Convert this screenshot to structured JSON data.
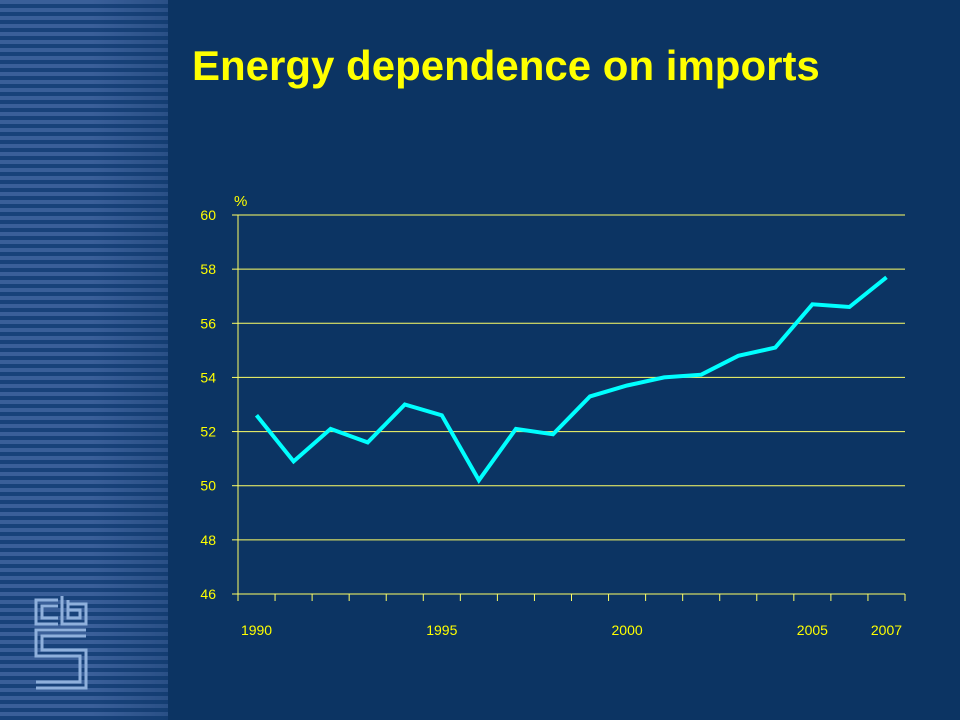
{
  "title": "Energy dependence on imports",
  "colors": {
    "background": "#0c3463",
    "title": "#ffff00",
    "axis_text": "#ffff00",
    "grid": "#ffff66",
    "line": "#00ffff",
    "logo": "#8fb0dc"
  },
  "logo_icon": "cbs-logo-icon",
  "chart_data": {
    "type": "line",
    "title": "Energy dependence on imports",
    "ylabel": "%",
    "xlabel": "",
    "ylim": [
      46,
      60
    ],
    "xlim": [
      1989.5,
      2007.5
    ],
    "yticks": [
      46,
      48,
      50,
      52,
      54,
      56,
      58,
      60
    ],
    "xtick_labels": [
      "1990",
      "1995",
      "2000",
      "2005",
      "2007"
    ],
    "grid": true,
    "series": [
      {
        "x": [
          1990,
          1991,
          1992,
          1993,
          1994,
          1995,
          1996,
          1997,
          1998,
          1999,
          2000,
          2001,
          2002,
          2003,
          2004,
          2005,
          2006,
          2007
        ],
        "values": [
          52.6,
          50.9,
          52.1,
          51.6,
          53.0,
          52.6,
          50.2,
          52.1,
          51.9,
          53.3,
          53.7,
          54.0,
          54.1,
          54.8,
          55.1,
          56.7,
          56.6,
          57.7
        ]
      }
    ]
  }
}
